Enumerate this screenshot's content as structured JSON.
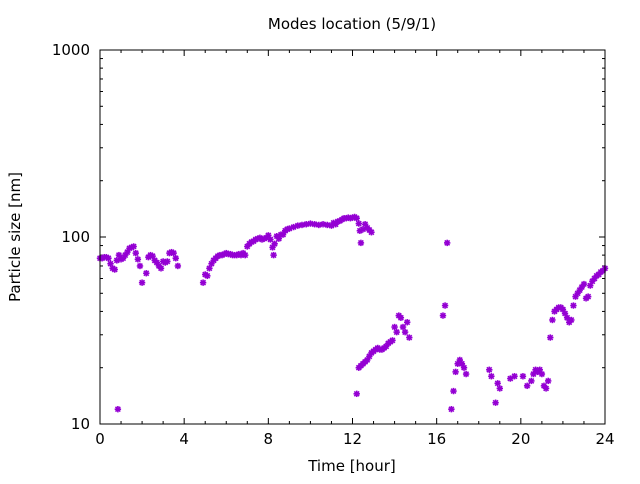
{
  "chart_data": {
    "type": "scatter",
    "title": "Modes location (5/9/1)",
    "xlabel": "Time [hour]",
    "ylabel": "Particle size [nm]",
    "xlim": [
      0,
      24
    ],
    "ylim": [
      10,
      1000
    ],
    "yscale": "log",
    "grid": false,
    "legend": "none",
    "marker_color": "#9400d3",
    "x_ticks": [
      0,
      4,
      8,
      12,
      16,
      20,
      24
    ],
    "x_tick_labels": [
      "0",
      "4",
      "8",
      "12",
      "16",
      "20",
      "24"
    ],
    "y_ticks": [
      10,
      100,
      1000
    ],
    "y_tick_labels": [
      "10",
      "100",
      "1000"
    ],
    "series": [
      {
        "points": [
          [
            0.0,
            77
          ],
          [
            0.1,
            77
          ],
          [
            0.2,
            78
          ],
          [
            0.3,
            78
          ],
          [
            0.4,
            77
          ],
          [
            0.5,
            72
          ],
          [
            0.6,
            68
          ],
          [
            0.7,
            67
          ],
          [
            0.8,
            75
          ],
          [
            0.85,
            12
          ],
          [
            0.9,
            80
          ],
          [
            1.0,
            76
          ],
          [
            1.1,
            77
          ],
          [
            1.2,
            80
          ],
          [
            1.3,
            83
          ],
          [
            1.4,
            87
          ],
          [
            1.5,
            88
          ],
          [
            1.6,
            89
          ],
          [
            1.7,
            82
          ],
          [
            1.8,
            76
          ],
          [
            1.9,
            70
          ],
          [
            2.0,
            57
          ],
          [
            2.2,
            64
          ],
          [
            2.3,
            78
          ],
          [
            2.4,
            80
          ],
          [
            2.5,
            79
          ],
          [
            2.6,
            75
          ],
          [
            2.7,
            73
          ],
          [
            2.8,
            70
          ],
          [
            2.9,
            68
          ],
          [
            3.0,
            74
          ],
          [
            3.1,
            73
          ],
          [
            3.2,
            74
          ],
          [
            3.3,
            82
          ],
          [
            3.4,
            83
          ],
          [
            3.5,
            82
          ],
          [
            3.6,
            77
          ],
          [
            3.7,
            70
          ],
          [
            4.9,
            57
          ],
          [
            5.0,
            63
          ],
          [
            5.1,
            62
          ],
          [
            5.2,
            68
          ],
          [
            5.3,
            72
          ],
          [
            5.4,
            75
          ],
          [
            5.5,
            77
          ],
          [
            5.6,
            79
          ],
          [
            5.7,
            80
          ],
          [
            5.8,
            80
          ],
          [
            5.9,
            81
          ],
          [
            6.0,
            82
          ],
          [
            6.1,
            81
          ],
          [
            6.2,
            81
          ],
          [
            6.3,
            80
          ],
          [
            6.4,
            80
          ],
          [
            6.5,
            80
          ],
          [
            6.6,
            81
          ],
          [
            6.7,
            80
          ],
          [
            6.8,
            82
          ],
          [
            6.9,
            80
          ],
          [
            7.0,
            89
          ],
          [
            7.1,
            92
          ],
          [
            7.2,
            94
          ],
          [
            7.3,
            95
          ],
          [
            7.4,
            97
          ],
          [
            7.5,
            98
          ],
          [
            7.6,
            99
          ],
          [
            7.7,
            97
          ],
          [
            7.8,
            98
          ],
          [
            7.9,
            99
          ],
          [
            8.0,
            102
          ],
          [
            8.1,
            97
          ],
          [
            8.2,
            88
          ],
          [
            8.25,
            80
          ],
          [
            8.3,
            92
          ],
          [
            8.4,
            101
          ],
          [
            8.5,
            98
          ],
          [
            8.6,
            103
          ],
          [
            8.7,
            103
          ],
          [
            8.8,
            108
          ],
          [
            8.9,
            110
          ],
          [
            9.0,
            111
          ],
          [
            9.2,
            113
          ],
          [
            9.4,
            115
          ],
          [
            9.6,
            116
          ],
          [
            9.8,
            117
          ],
          [
            10.0,
            118
          ],
          [
            10.2,
            117
          ],
          [
            10.4,
            116
          ],
          [
            10.6,
            117
          ],
          [
            10.8,
            116
          ],
          [
            11.0,
            115
          ],
          [
            11.1,
            119
          ],
          [
            11.2,
            117
          ],
          [
            11.3,
            121
          ],
          [
            11.4,
            122
          ],
          [
            11.5,
            124
          ],
          [
            11.6,
            126
          ],
          [
            11.7,
            126
          ],
          [
            11.8,
            127
          ],
          [
            11.9,
            126
          ],
          [
            12.0,
            127
          ],
          [
            12.1,
            128
          ],
          [
            12.2,
            126
          ],
          [
            12.3,
            118
          ],
          [
            12.35,
            108
          ],
          [
            12.4,
            93
          ],
          [
            12.5,
            110
          ],
          [
            12.6,
            117
          ],
          [
            12.7,
            112
          ],
          [
            12.8,
            109
          ],
          [
            12.9,
            106
          ],
          [
            12.2,
            14.5
          ],
          [
            12.3,
            20
          ],
          [
            12.4,
            20.5
          ],
          [
            12.5,
            21
          ],
          [
            12.6,
            21.5
          ],
          [
            12.7,
            22
          ],
          [
            12.8,
            23
          ],
          [
            12.9,
            24
          ],
          [
            13.0,
            24.5
          ],
          [
            13.1,
            25
          ],
          [
            13.2,
            25.5
          ],
          [
            13.3,
            25
          ],
          [
            13.4,
            25
          ],
          [
            13.5,
            25.5
          ],
          [
            13.6,
            26
          ],
          [
            13.7,
            27
          ],
          [
            13.8,
            27.5
          ],
          [
            13.9,
            28
          ],
          [
            14.0,
            33
          ],
          [
            14.1,
            31
          ],
          [
            14.2,
            38
          ],
          [
            14.3,
            37
          ],
          [
            14.4,
            33
          ],
          [
            14.5,
            31
          ],
          [
            14.6,
            35
          ],
          [
            14.7,
            29
          ],
          [
            16.3,
            38
          ],
          [
            16.4,
            43
          ],
          [
            16.5,
            93
          ],
          [
            16.7,
            12
          ],
          [
            16.8,
            15
          ],
          [
            16.9,
            19
          ],
          [
            17.0,
            21
          ],
          [
            17.1,
            22
          ],
          [
            17.2,
            21
          ],
          [
            17.3,
            20
          ],
          [
            17.4,
            18.5
          ],
          [
            18.5,
            19.5
          ],
          [
            18.6,
            18
          ],
          [
            18.8,
            13
          ],
          [
            18.9,
            16.5
          ],
          [
            19.0,
            15.5
          ],
          [
            19.5,
            17.5
          ],
          [
            19.7,
            18
          ],
          [
            20.1,
            18
          ],
          [
            20.3,
            16
          ],
          [
            20.5,
            17
          ],
          [
            20.6,
            18.5
          ],
          [
            20.7,
            19.5
          ],
          [
            20.8,
            19
          ],
          [
            20.9,
            19.5
          ],
          [
            21.0,
            18.5
          ],
          [
            21.1,
            16
          ],
          [
            21.2,
            15.5
          ],
          [
            21.3,
            17
          ],
          [
            21.4,
            29
          ],
          [
            21.5,
            36
          ],
          [
            21.6,
            40
          ],
          [
            21.7,
            41
          ],
          [
            21.8,
            42
          ],
          [
            21.9,
            42
          ],
          [
            22.0,
            41
          ],
          [
            22.1,
            39
          ],
          [
            22.2,
            37
          ],
          [
            22.3,
            35
          ],
          [
            22.4,
            36
          ],
          [
            22.5,
            43
          ],
          [
            22.6,
            48
          ],
          [
            22.7,
            50
          ],
          [
            22.8,
            52
          ],
          [
            22.9,
            54
          ],
          [
            23.0,
            56
          ],
          [
            23.1,
            47
          ],
          [
            23.2,
            48
          ],
          [
            23.3,
            55
          ],
          [
            23.4,
            58
          ],
          [
            23.5,
            60
          ],
          [
            23.6,
            62
          ],
          [
            23.7,
            63
          ],
          [
            23.8,
            65
          ],
          [
            23.9,
            66
          ],
          [
            24.0,
            68
          ]
        ]
      }
    ]
  }
}
